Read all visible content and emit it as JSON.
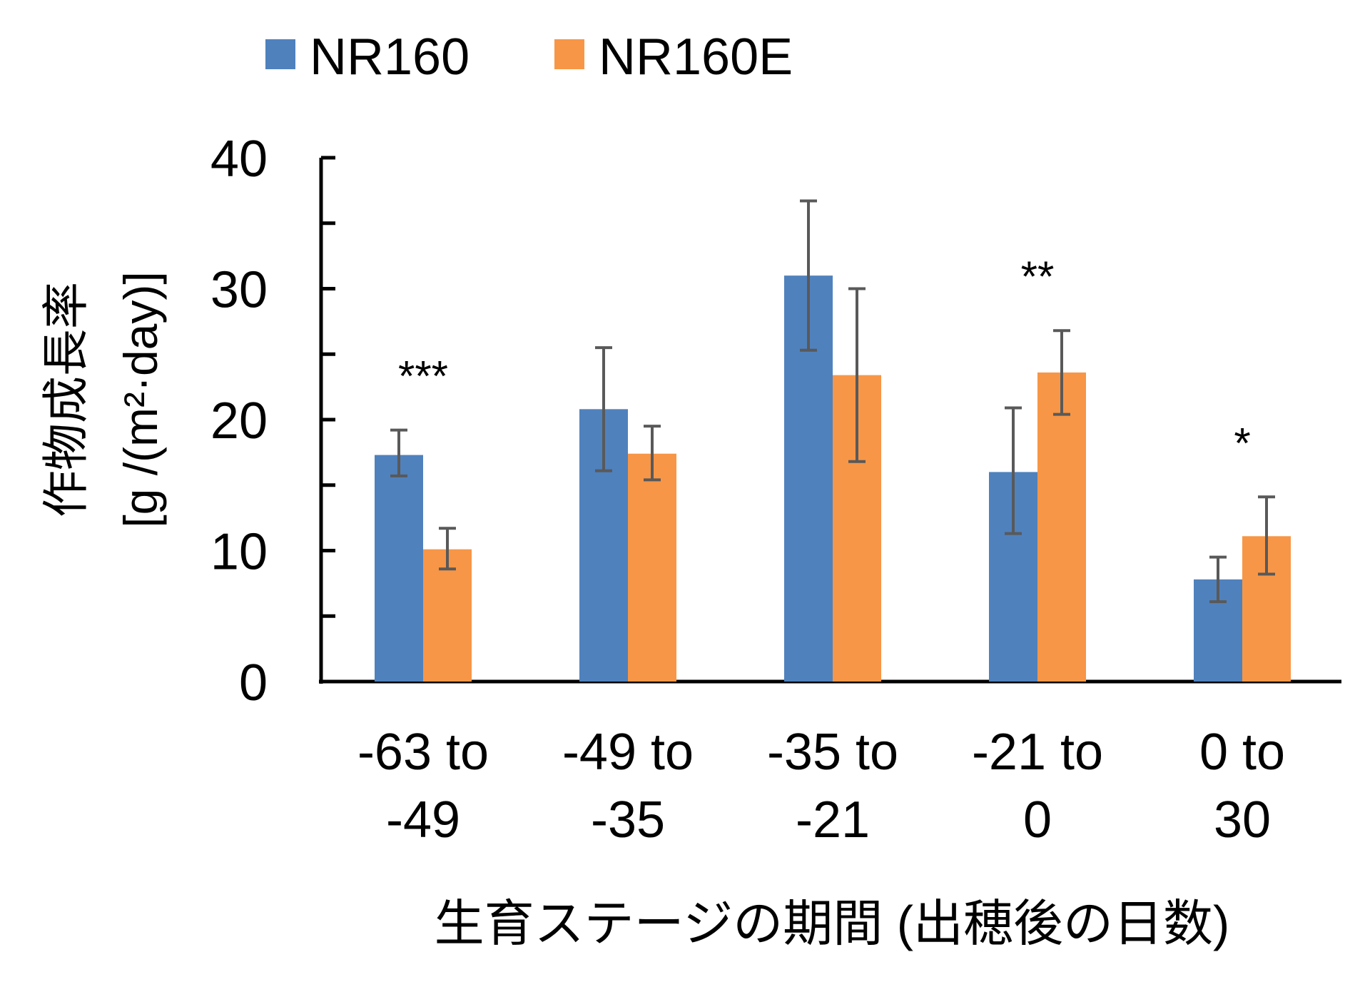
{
  "chart_data": {
    "type": "bar",
    "categories": [
      [
        "-63 to",
        "-49"
      ],
      [
        "-49 to",
        "-35"
      ],
      [
        "-35 to",
        "-21"
      ],
      [
        "-21 to",
        "0"
      ],
      [
        "0 to",
        "30"
      ]
    ],
    "series": [
      {
        "name": "NR160",
        "color": "#4F81BD",
        "values": [
          17.3,
          20.8,
          31.0,
          16.0,
          7.8
        ],
        "err_high": [
          19.2,
          25.5,
          36.7,
          20.9,
          9.5
        ],
        "err_low": [
          15.7,
          16.1,
          25.3,
          11.3,
          6.1
        ]
      },
      {
        "name": "NR160E",
        "color": "#F79646",
        "values": [
          10.1,
          17.4,
          23.4,
          23.6,
          11.1
        ],
        "err_high": [
          11.7,
          19.5,
          30.0,
          26.8,
          14.1
        ],
        "err_low": [
          8.6,
          15.4,
          16.8,
          20.4,
          8.2
        ]
      }
    ],
    "annotations": [
      "***",
      "",
      "",
      "**",
      "*"
    ],
    "ylabel": [
      "作物成長率",
      "[g /(m²·day)]"
    ],
    "xlabel": "生育ステージの期間 (出穂後の日数)",
    "ylim": [
      0,
      40
    ],
    "yticks": [
      0,
      10,
      20,
      30,
      40
    ],
    "legend": "top",
    "grid": false
  }
}
